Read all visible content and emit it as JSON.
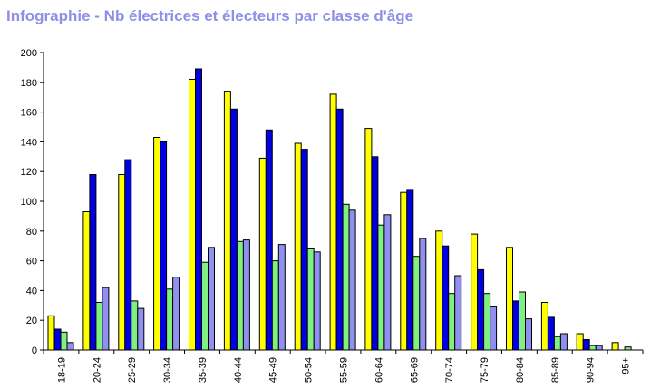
{
  "title": "Infographie - Nb électrices et électeurs par classe d'âge",
  "chart_data": {
    "type": "bar",
    "title": "Infographie - Nb électrices et électeurs par classe d'âge",
    "xlabel": "",
    "ylabel": "",
    "ylim": [
      0,
      200
    ],
    "yticks": [
      "0",
      "20",
      "40",
      "60",
      "80",
      "100",
      "120",
      "140",
      "160",
      "180",
      "200"
    ],
    "grid": false,
    "legend": "none",
    "categories": [
      "18-19",
      "20-24",
      "25-29",
      "30-34",
      "35-39",
      "40-44",
      "45-49",
      "50-54",
      "55-59",
      "60-64",
      "65-69",
      "70-74",
      "75-79",
      "80-84",
      "85-89",
      "90-94",
      "95+"
    ],
    "series": [
      {
        "color": "#ffff00",
        "values": [
          23,
          93,
          118,
          143,
          182,
          174,
          129,
          139,
          172,
          149,
          106,
          80,
          78,
          69,
          32,
          11,
          5
        ]
      },
      {
        "color": "#0000e0",
        "values": [
          14,
          118,
          128,
          140,
          189,
          162,
          148,
          135,
          162,
          130,
          108,
          70,
          54,
          33,
          22,
          7,
          0
        ]
      },
      {
        "color": "#80f080",
        "values": [
          12,
          32,
          33,
          41,
          59,
          73,
          60,
          68,
          98,
          84,
          63,
          38,
          38,
          39,
          9,
          3,
          2
        ]
      },
      {
        "color": "#9090f0",
        "values": [
          5,
          42,
          28,
          49,
          69,
          74,
          71,
          66,
          94,
          91,
          75,
          50,
          29,
          21,
          11,
          3,
          0
        ]
      }
    ]
  }
}
